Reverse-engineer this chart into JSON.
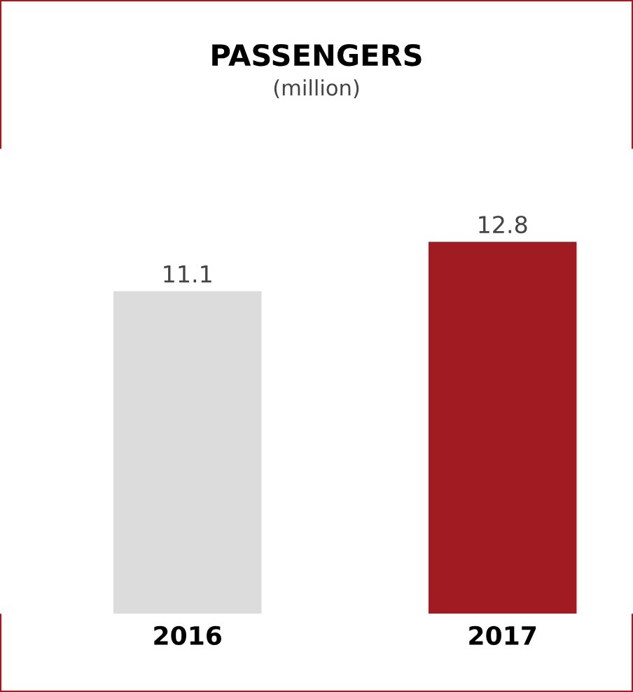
{
  "chart_data": {
    "type": "bar",
    "title": "PASSENGERS",
    "subtitle": "(million)",
    "categories": [
      "2016",
      "2017"
    ],
    "values": [
      11.1,
      12.8
    ],
    "colors": [
      "#dcdcdc",
      "#a01c22"
    ],
    "data_labels": true,
    "grid": false,
    "legend": false
  }
}
